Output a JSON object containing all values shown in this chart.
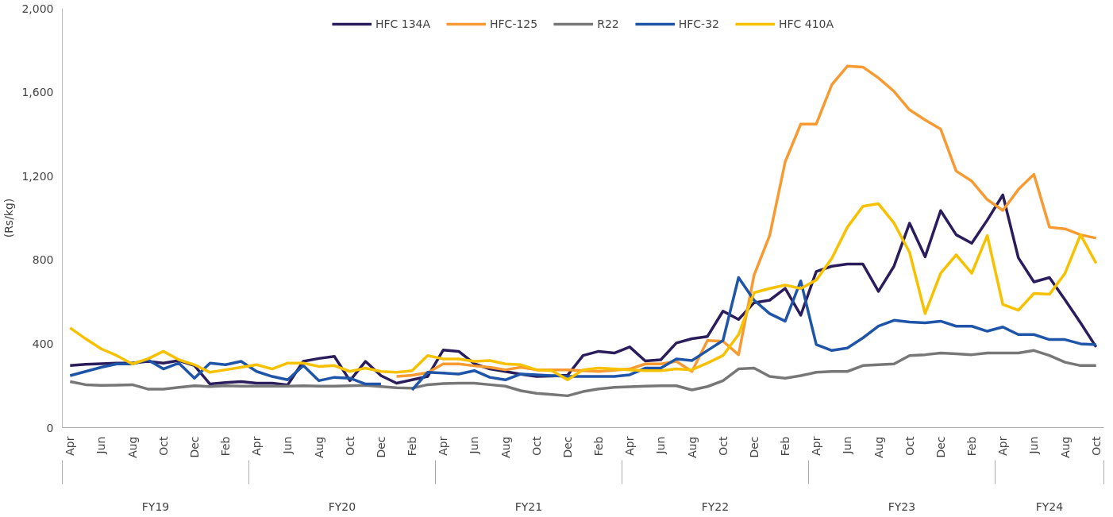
{
  "chart_data": {
    "type": "line",
    "ylabel": "(Rs/kg)",
    "categories": [
      "Apr",
      null,
      "Jun",
      null,
      "Aug",
      null,
      "Oct",
      null,
      "Dec",
      null,
      "Feb",
      null,
      "Apr",
      null,
      "Jun",
      null,
      "Aug",
      null,
      "Oct",
      null,
      "Dec",
      null,
      "Feb",
      null,
      "Apr",
      null,
      "Jun",
      null,
      "Aug",
      null,
      "Oct",
      null,
      "Dec",
      null,
      "Feb",
      null,
      "Apr",
      null,
      "Jun",
      null,
      "Aug",
      null,
      "Oct",
      null,
      "Dec",
      null,
      "Feb",
      null,
      "Apr",
      null,
      "Jun",
      null,
      "Aug",
      null,
      "Oct",
      null,
      "Dec",
      null,
      "Feb",
      null,
      "Apr",
      null,
      "Jun",
      null,
      "Aug",
      null,
      "Oct"
    ],
    "annotations": [
      "FY19",
      "FY20",
      "FY21",
      "FY22",
      "FY23",
      "FY24"
    ],
    "series": [
      {
        "name": "HFC 134A",
        "color": "#2b1d5c",
        "values": [
          296,
          302,
          305,
          308,
          308,
          316,
          308,
          320,
          296,
          208,
          215,
          220,
          212,
          212,
          204,
          316,
          330,
          340,
          224,
          316,
          248,
          212,
          228,
          244,
          370,
          364,
          305,
          280,
          268,
          255,
          244,
          246,
          250,
          344,
          364,
          356,
          385,
          318,
          324,
          404,
          424,
          435,
          556,
          516,
          596,
          608,
          664,
          536,
          745,
          770,
          780,
          780,
          650,
          770,
          975,
          815,
          1035,
          920,
          880,
          990,
          1110,
          810,
          695,
          716,
          610,
          500,
          385
        ]
      },
      {
        "name": "HFC-125",
        "color": "#f79a32",
        "values": [
          null,
          null,
          null,
          null,
          null,
          null,
          null,
          null,
          null,
          null,
          null,
          null,
          null,
          null,
          null,
          null,
          null,
          null,
          null,
          null,
          null,
          244,
          250,
          262,
          304,
          304,
          295,
          288,
          276,
          288,
          276,
          276,
          276,
          272,
          268,
          274,
          280,
          304,
          304,
          316,
          268,
          416,
          412,
          348,
          728,
          916,
          1268,
          1448,
          1448,
          1636,
          1724,
          1720,
          1668,
          1604,
          1516,
          1468,
          1424,
          1224,
          1176,
          1088,
          1036,
          1136,
          1208,
          956,
          948,
          920,
          904
        ]
      },
      {
        "name": "R22",
        "color": "#777777",
        "values": [
          220,
          205,
          202,
          203,
          205,
          184,
          184,
          192,
          200,
          196,
          200,
          198,
          198,
          198,
          198,
          200,
          198,
          198,
          200,
          202,
          196,
          190,
          188,
          205,
          210,
          212,
          212,
          205,
          198,
          176,
          164,
          158,
          152,
          172,
          185,
          192,
          195,
          198,
          200,
          200,
          180,
          196,
          224,
          280,
          284,
          244,
          236,
          248,
          264,
          268,
          268,
          296,
          300,
          304,
          344,
          348,
          356,
          352,
          348,
          356,
          356,
          356,
          368,
          344,
          312,
          296,
          296
        ]
      },
      {
        "name": "HFC-32",
        "color": "#1f55a8",
        "values": [
          248,
          268,
          288,
          304,
          304,
          324,
          280,
          308,
          236,
          308,
          300,
          316,
          268,
          244,
          228,
          296,
          224,
          240,
          236,
          208,
          208,
          null,
          180,
          264,
          260,
          256,
          272,
          240,
          228,
          256,
          252,
          248,
          244,
          244,
          244,
          244,
          252,
          284,
          284,
          328,
          320,
          368,
          416,
          716,
          608,
          544,
          508,
          700,
          396,
          368,
          380,
          428,
          484,
          512,
          504,
          500,
          508,
          484,
          484,
          460,
          480,
          444,
          444,
          420,
          420,
          400,
          396
        ]
      },
      {
        "name": "HFC 410A",
        "color": "#f7c100",
        "values": [
          476,
          424,
          376,
          344,
          304,
          328,
          364,
          324,
          300,
          264,
          276,
          288,
          300,
          280,
          308,
          308,
          292,
          296,
          268,
          284,
          268,
          264,
          272,
          344,
          328,
          328,
          316,
          320,
          304,
          300,
          276,
          272,
          228,
          276,
          284,
          280,
          276,
          272,
          272,
          280,
          276,
          308,
          344,
          444,
          644,
          664,
          680,
          664,
          704,
          808,
          956,
          1056,
          1068,
          976,
          836,
          544,
          736,
          824,
          736,
          916,
          588,
          560,
          640,
          636,
          736,
          920,
          784
        ]
      }
    ],
    "ylim": [
      0,
      2000
    ],
    "yticks": [
      0,
      400,
      800,
      {
        "value": 1200,
        "label": "1,200"
      },
      {
        "value": 1600,
        "label": "1,600"
      },
      {
        "value": 2000,
        "label": "2,000"
      }
    ],
    "grid": false,
    "legend": "top",
    "marker": "none",
    "line_style": "solid"
  }
}
